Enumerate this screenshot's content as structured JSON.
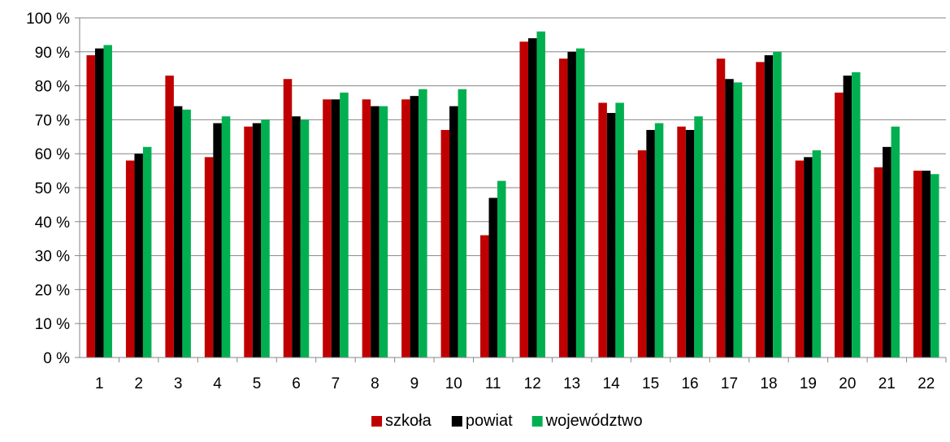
{
  "chart_data": {
    "type": "bar",
    "title": "",
    "xlabel": "",
    "ylabel": "",
    "ylim": [
      0,
      100
    ],
    "y_tick_step": 10,
    "y_tick_suffix": " %",
    "grid": true,
    "legend_position": "bottom",
    "categories": [
      "1",
      "2",
      "3",
      "4",
      "5",
      "6",
      "7",
      "8",
      "9",
      "10",
      "11",
      "12",
      "13",
      "14",
      "15",
      "16",
      "17",
      "18",
      "19",
      "20",
      "21",
      "22"
    ],
    "series": [
      {
        "name": "szkoła",
        "color": "#c00000",
        "values": [
          89,
          58,
          83,
          59,
          68,
          82,
          76,
          76,
          76,
          67,
          36,
          93,
          88,
          75,
          61,
          68,
          88,
          87,
          58,
          78,
          56,
          55
        ]
      },
      {
        "name": "powiat",
        "color": "#000000",
        "values": [
          91,
          60,
          74,
          69,
          69,
          71,
          76,
          74,
          77,
          74,
          47,
          94,
          90,
          72,
          67,
          67,
          82,
          89,
          59,
          83,
          62,
          55
        ]
      },
      {
        "name": "województwo",
        "color": "#00b050",
        "values": [
          92,
          62,
          73,
          71,
          70,
          70,
          78,
          74,
          79,
          79,
          52,
          96,
          91,
          75,
          69,
          71,
          81,
          90,
          61,
          84,
          68,
          54
        ]
      }
    ]
  }
}
